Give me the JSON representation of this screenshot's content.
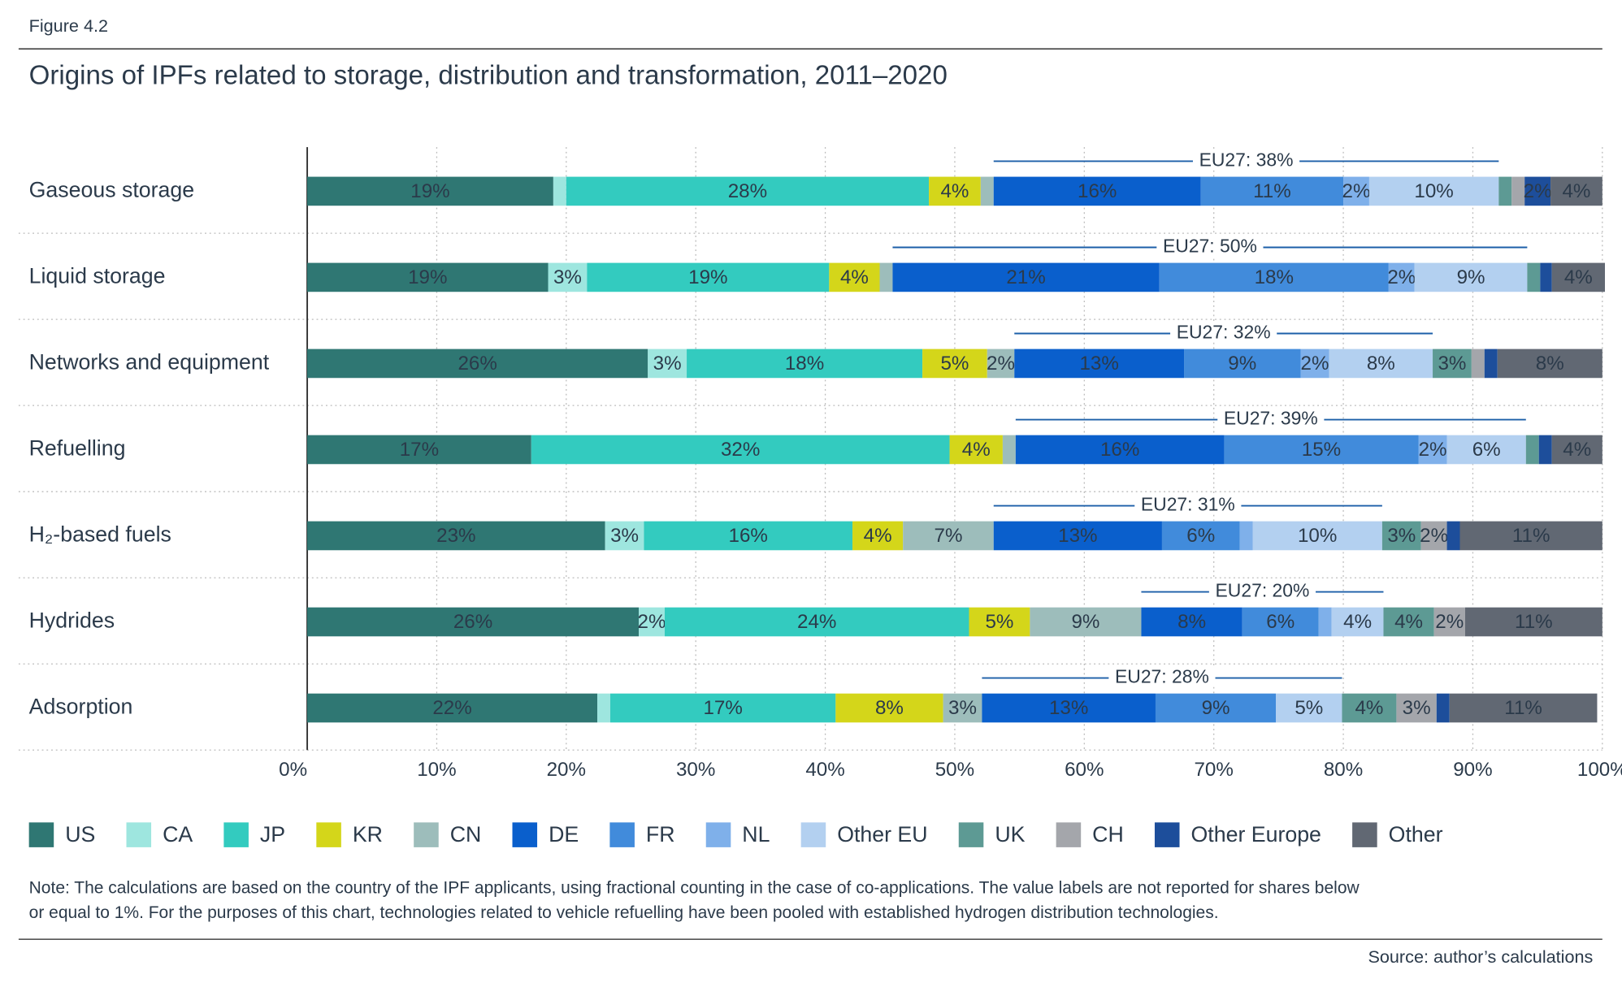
{
  "figure_label": "Figure 4.2",
  "note": [
    "Note: The calculations are based on the country of the IPF applicants, using fractional counting in the case of co-applications. The value labels are not reported for shares below",
    "or equal to 1%. For the purposes of this chart, technologies related to vehicle refuelling have been pooled with established hydrogen distribution technologies."
  ],
  "source": "Source: author’s calculations",
  "chart_data": {
    "type": "stacked_bar_horizontal",
    "title": "Origins of IPFs related to storage, distribution and transformation, 2011–2020",
    "categories": [
      "Gaseous storage",
      "Liquid storage",
      "Networks and equipment",
      "Refuelling",
      "H₂-based fuels",
      "Hydrides",
      "Adsorption"
    ],
    "annotations": [
      "EU27: 38%",
      "EU27: 50%",
      "EU27: 32%",
      "EU27: 39%",
      "EU27: 31%",
      "EU27: 20%",
      "EU27: 28%"
    ],
    "xlim": [
      0,
      100
    ],
    "xticks": [
      {
        "value": 0,
        "label": "0%"
      },
      {
        "value": 10,
        "label": "10%"
      },
      {
        "value": 20,
        "label": "20%"
      },
      {
        "value": 30,
        "label": "30%"
      },
      {
        "value": 40,
        "label": "40%"
      },
      {
        "value": 50,
        "label": "50%"
      },
      {
        "value": 60,
        "label": "60%"
      },
      {
        "value": 70,
        "label": "70%"
      },
      {
        "value": 80,
        "label": "80%"
      },
      {
        "value": 90,
        "label": "90%"
      },
      {
        "value": 100,
        "label": "100%"
      }
    ],
    "grid": true,
    "legend": "bottom",
    "series": [
      {
        "name": "US",
        "color": "#2f7773",
        "values": [
          19,
          18.6,
          26.3,
          17.3,
          23,
          25.6,
          22.4
        ],
        "value_labels": [
          "19%",
          "19%",
          "26%",
          "17%",
          "23%",
          "26%",
          "22%"
        ]
      },
      {
        "name": "CA",
        "color": "#9ee6df",
        "values": [
          1,
          3,
          3,
          0,
          3,
          2,
          1
        ],
        "value_labels": [
          null,
          "3%",
          "3%",
          null,
          "3%",
          "2%",
          null
        ]
      },
      {
        "name": "JP",
        "color": "#33cbbf",
        "values": [
          28,
          18.7,
          18.2,
          32.3,
          16.1,
          23.5,
          17.4
        ],
        "value_labels": [
          "28%",
          "19%",
          "18%",
          "32%",
          "16%",
          "24%",
          "17%"
        ]
      },
      {
        "name": "KR",
        "color": "#d4d61a",
        "values": [
          4,
          3.9,
          5,
          4.1,
          3.9,
          4.7,
          8.3
        ],
        "value_labels": [
          "4%",
          "4%",
          "5%",
          "4%",
          "4%",
          "5%",
          "8%"
        ]
      },
      {
        "name": "CN",
        "color": "#9dbdbb",
        "values": [
          1,
          1,
          2.1,
          1,
          7,
          8.6,
          3
        ],
        "value_labels": [
          null,
          null,
          "2%",
          null,
          "7%",
          "9%",
          "3%"
        ]
      },
      {
        "name": "DE",
        "color": "#0a5fcc",
        "values": [
          16,
          20.6,
          13.1,
          16.1,
          13,
          7.8,
          13.4
        ],
        "value_labels": [
          "16%",
          "21%",
          "13%",
          "16%",
          "13%",
          "8%",
          "13%"
        ]
      },
      {
        "name": "FR",
        "color": "#418bdb",
        "values": [
          11,
          17.7,
          9,
          15,
          6,
          5.9,
          9.3
        ],
        "value_labels": [
          "11%",
          "18%",
          "9%",
          "15%",
          "6%",
          "6%",
          "9%"
        ]
      },
      {
        "name": "NL",
        "color": "#7fb0ea",
        "values": [
          2,
          2,
          2.2,
          2.2,
          1,
          1,
          0
        ],
        "value_labels": [
          "2%",
          "2%",
          "2%",
          "2%",
          null,
          null,
          null
        ]
      },
      {
        "name": "Other EU",
        "color": "#b3d0f0",
        "values": [
          10,
          8.7,
          8,
          6.1,
          10,
          4,
          5.1
        ],
        "value_labels": [
          "10%",
          "9%",
          "8%",
          "6%",
          "10%",
          "4%",
          "5%"
        ]
      },
      {
        "name": "UK",
        "color": "#5d9a94",
        "values": [
          1,
          1,
          3,
          1,
          3,
          3.9,
          4.2
        ],
        "value_labels": [
          null,
          null,
          "3%",
          null,
          "3%",
          "4%",
          "4%"
        ]
      },
      {
        "name": "CH",
        "color": "#a4a6ab",
        "values": [
          1,
          0,
          1,
          0,
          2,
          2.4,
          3.1
        ],
        "value_labels": [
          null,
          null,
          null,
          null,
          "2%",
          "2%",
          "3%"
        ]
      },
      {
        "name": "Other Europe",
        "color": "#1d4e9b",
        "values": [
          2,
          0.9,
          1,
          1,
          1,
          0,
          1
        ],
        "value_labels": [
          "2%",
          null,
          null,
          null,
          null,
          null,
          null
        ]
      },
      {
        "name": "Other",
        "color": "#616873",
        "values": [
          4,
          4.1,
          8.1,
          3.9,
          11,
          10.6,
          11.4
        ],
        "value_labels": [
          "4%",
          "4%",
          "8%",
          "4%",
          "11%",
          "11%",
          "11%"
        ]
      }
    ]
  }
}
